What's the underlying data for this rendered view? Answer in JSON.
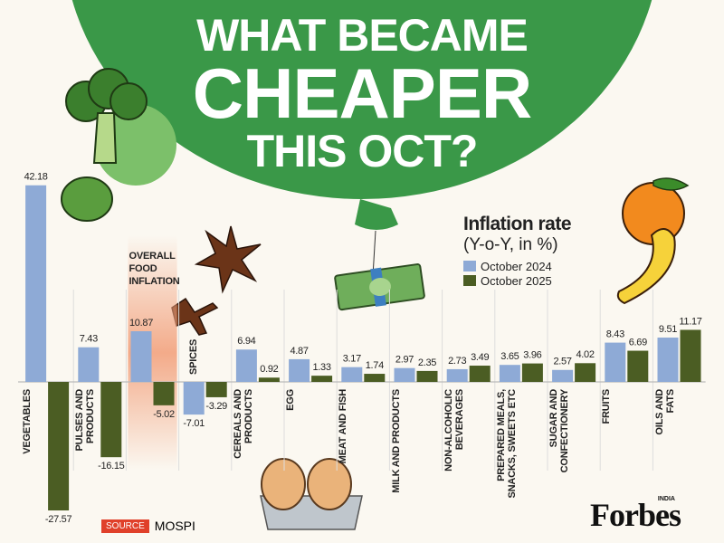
{
  "chart_data": {
    "type": "bar",
    "title_lines": [
      "WHAT BECAME",
      "CHEAPER",
      "THIS OCT?"
    ],
    "legend_title": "Inflation rate",
    "legend_subtitle": "(Y-o-Y, in %)",
    "categories": [
      "VEGETABLES",
      "PULSES AND\nPRODUCTS",
      "OVERALL\nFOOD\nINFLATION",
      "SPICES",
      "CEREALS AND\nPRODUCTS",
      "EGG",
      "MEAT AND FISH",
      "MILK AND PRODUCTS",
      "NON-ALCOHOLIC\nBEVERAGES",
      "PREPARED MEALS,\nSNACKS, SWEETS ETC",
      "SUGAR AND\nCONFECTIONERY",
      "FRUITS",
      "OILS AND FATS"
    ],
    "highlight_index": 2,
    "highlight_color": "#f2a27e",
    "series": [
      {
        "name": "October 2024",
        "color": "#8eaad6",
        "values": [
          42.18,
          7.43,
          10.87,
          -7.01,
          6.94,
          4.87,
          3.17,
          2.97,
          2.73,
          3.65,
          2.57,
          8.43,
          9.51
        ]
      },
      {
        "name": "October 2025",
        "color": "#4b5d23",
        "values": [
          -27.57,
          -16.15,
          -5.02,
          -3.29,
          0.92,
          1.33,
          1.74,
          2.35,
          3.49,
          3.96,
          4.02,
          6.69,
          11.17
        ]
      }
    ],
    "source_label": "SOURCE",
    "source": "MOSPI",
    "brand": "Forbes",
    "brand_edition": "INDIA"
  }
}
